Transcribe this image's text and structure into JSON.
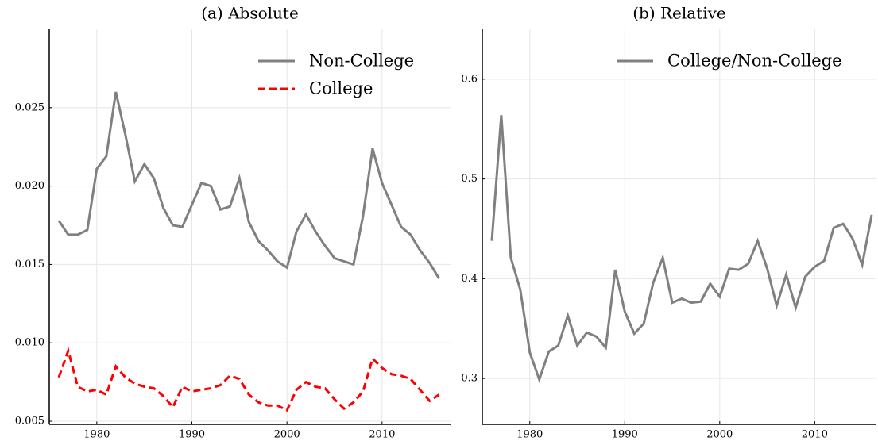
{
  "chart_data": [
    {
      "type": "line",
      "title": "(a) Absolute",
      "x": [
        1976,
        1977,
        1978,
        1979,
        1980,
        1981,
        1982,
        1983,
        1984,
        1985,
        1986,
        1987,
        1988,
        1989,
        1990,
        1991,
        1992,
        1993,
        1994,
        1995,
        1996,
        1997,
        1998,
        1999,
        2000,
        2001,
        2002,
        2003,
        2004,
        2005,
        2006,
        2007,
        2008,
        2009,
        2010,
        2011,
        2012,
        2013,
        2014,
        2015,
        2016
      ],
      "series": [
        {
          "name": "Non-College",
          "color": "#808080",
          "linestyle": "solid",
          "values": [
            0.0178,
            0.0169,
            0.0169,
            0.0172,
            0.0211,
            0.0219,
            0.026,
            0.0233,
            0.0203,
            0.0214,
            0.0205,
            0.0186,
            0.0175,
            0.0174,
            0.0188,
            0.0202,
            0.02,
            0.0185,
            0.0187,
            0.0205,
            0.0177,
            0.0165,
            0.0159,
            0.0152,
            0.0148,
            0.0171,
            0.0182,
            0.0171,
            0.0162,
            0.0154,
            0.0152,
            0.015,
            0.0181,
            0.0224,
            0.0202,
            0.0188,
            0.0174,
            0.0169,
            0.0159,
            0.0151,
            0.0141
          ]
        },
        {
          "name": "College",
          "color": "#ff0000",
          "linestyle": "dashed",
          "values": [
            0.0078,
            0.0095,
            0.0072,
            0.0069,
            0.007,
            0.0067,
            0.0085,
            0.0078,
            0.0074,
            0.0072,
            0.0071,
            0.0066,
            0.0059,
            0.0072,
            0.0069,
            0.007,
            0.0071,
            0.0073,
            0.0079,
            0.0077,
            0.0067,
            0.0062,
            0.006,
            0.006,
            0.0057,
            0.007,
            0.0075,
            0.0072,
            0.0071,
            0.0064,
            0.0058,
            0.0062,
            0.0069,
            0.009,
            0.0084,
            0.008,
            0.0079,
            0.0077,
            0.007,
            0.0063,
            0.0067
          ]
        }
      ],
      "xlim": [
        1975,
        2017.2
      ],
      "xticks": [
        1980,
        1990,
        2000,
        2010
      ],
      "ylim": [
        0.0048,
        0.03
      ],
      "yticks": [
        0.005,
        {
          "value": 0.01,
          "label": "0.010"
        },
        0.015,
        {
          "value": 0.02,
          "label": "0.020"
        },
        0.025
      ],
      "grid": true,
      "legend": "upper right"
    },
    {
      "type": "line",
      "title": "(b) Relative",
      "x": [
        1976,
        1977,
        1978,
        1979,
        1980,
        1981,
        1982,
        1983,
        1984,
        1985,
        1986,
        1987,
        1988,
        1989,
        1990,
        1991,
        1992,
        1993,
        1994,
        1995,
        1996,
        1997,
        1998,
        1999,
        2000,
        2001,
        2002,
        2003,
        2004,
        2005,
        2006,
        2007,
        2008,
        2009,
        2010,
        2011,
        2012,
        2013,
        2014,
        2015,
        2016
      ],
      "series": [
        {
          "name": "College/Non-College",
          "color": "#808080",
          "linestyle": "solid",
          "values": [
            0.438,
            0.564,
            0.421,
            0.389,
            0.326,
            0.299,
            0.327,
            0.333,
            0.363,
            0.333,
            0.346,
            0.342,
            0.331,
            0.409,
            0.367,
            0.345,
            0.355,
            0.396,
            0.421,
            0.376,
            0.38,
            0.376,
            0.377,
            0.395,
            0.382,
            0.41,
            0.409,
            0.415,
            0.438,
            0.41,
            0.373,
            0.404,
            0.371,
            0.402,
            0.412,
            0.418,
            0.451,
            0.455,
            0.44,
            0.414,
            0.464
          ]
        }
      ],
      "xlim": [
        1975,
        2016.5
      ],
      "xticks": [
        1980,
        1990,
        2000,
        2010
      ],
      "ylim": [
        0.254,
        0.65
      ],
      "yticks": [
        0.3,
        0.4,
        0.5,
        0.6
      ],
      "grid": true,
      "legend": "upper right"
    }
  ]
}
